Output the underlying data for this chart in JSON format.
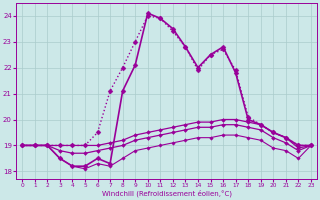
{
  "xlabel": "Windchill (Refroidissement éolien,°C)",
  "background_color": "#cce8e8",
  "grid_color": "#aacccc",
  "line_color": "#990099",
  "xlim": [
    -0.5,
    23.5
  ],
  "ylim": [
    17.7,
    24.5
  ],
  "yticks": [
    18,
    19,
    20,
    21,
    22,
    23,
    24
  ],
  "xticks": [
    0,
    1,
    2,
    3,
    4,
    5,
    6,
    7,
    8,
    9,
    10,
    11,
    12,
    13,
    14,
    15,
    16,
    17,
    18,
    19,
    20,
    21,
    22,
    23
  ],
  "curves": [
    {
      "x": [
        0,
        1,
        2,
        3,
        4,
        5,
        6,
        7,
        8,
        9,
        10,
        11,
        12,
        13,
        14,
        15,
        16,
        17,
        18,
        19,
        20,
        21,
        22,
        23
      ],
      "y": [
        19.0,
        19.0,
        19.0,
        19.0,
        19.0,
        19.0,
        19.5,
        21.1,
        22.0,
        23.0,
        24.0,
        23.9,
        23.4,
        22.8,
        21.9,
        22.5,
        22.7,
        21.9,
        20.1,
        19.8,
        19.5,
        19.3,
        19.0,
        19.0
      ],
      "linestyle": "dotted",
      "linewidth": 1.0,
      "marker": "D",
      "markersize": 2.5
    },
    {
      "x": [
        0,
        1,
        2,
        3,
        4,
        5,
        6,
        7,
        8,
        9,
        10,
        11,
        12,
        13,
        14,
        15,
        16,
        17,
        18,
        19,
        20,
        21,
        22,
        23
      ],
      "y": [
        19.0,
        19.0,
        19.0,
        18.5,
        18.2,
        18.2,
        18.5,
        18.3,
        21.1,
        22.1,
        24.1,
        23.9,
        23.5,
        22.8,
        22.0,
        22.5,
        22.8,
        21.8,
        20.0,
        19.8,
        19.5,
        19.3,
        19.0,
        19.0
      ],
      "linestyle": "-",
      "linewidth": 1.2,
      "marker": "D",
      "markersize": 2.5
    },
    {
      "x": [
        0,
        1,
        2,
        3,
        4,
        5,
        6,
        7,
        8,
        9,
        10,
        11,
        12,
        13,
        14,
        15,
        16,
        17,
        18,
        19,
        20,
        21,
        22,
        23
      ],
      "y": [
        19.0,
        19.0,
        19.0,
        19.0,
        19.0,
        19.0,
        19.0,
        19.1,
        19.2,
        19.4,
        19.5,
        19.6,
        19.7,
        19.8,
        19.9,
        19.9,
        20.0,
        20.0,
        19.9,
        19.8,
        19.5,
        19.3,
        18.9,
        19.0
      ],
      "linestyle": "-",
      "linewidth": 0.9,
      "marker": "D",
      "markersize": 2.0
    },
    {
      "x": [
        0,
        1,
        2,
        3,
        4,
        5,
        6,
        7,
        8,
        9,
        10,
        11,
        12,
        13,
        14,
        15,
        16,
        17,
        18,
        19,
        20,
        21,
        22,
        23
      ],
      "y": [
        19.0,
        19.0,
        19.0,
        18.8,
        18.7,
        18.7,
        18.8,
        18.9,
        19.0,
        19.2,
        19.3,
        19.4,
        19.5,
        19.6,
        19.7,
        19.7,
        19.8,
        19.8,
        19.7,
        19.6,
        19.3,
        19.1,
        18.8,
        19.0
      ],
      "linestyle": "-",
      "linewidth": 0.9,
      "marker": "D",
      "markersize": 2.0
    },
    {
      "x": [
        0,
        1,
        2,
        3,
        4,
        5,
        6,
        7,
        8,
        9,
        10,
        11,
        12,
        13,
        14,
        15,
        16,
        17,
        18,
        19,
        20,
        21,
        22,
        23
      ],
      "y": [
        19.0,
        19.0,
        19.0,
        18.5,
        18.2,
        18.1,
        18.3,
        18.2,
        18.5,
        18.8,
        18.9,
        19.0,
        19.1,
        19.2,
        19.3,
        19.3,
        19.4,
        19.4,
        19.3,
        19.2,
        18.9,
        18.8,
        18.5,
        19.0
      ],
      "linestyle": "-",
      "linewidth": 0.8,
      "marker": "D",
      "markersize": 1.8
    }
  ]
}
